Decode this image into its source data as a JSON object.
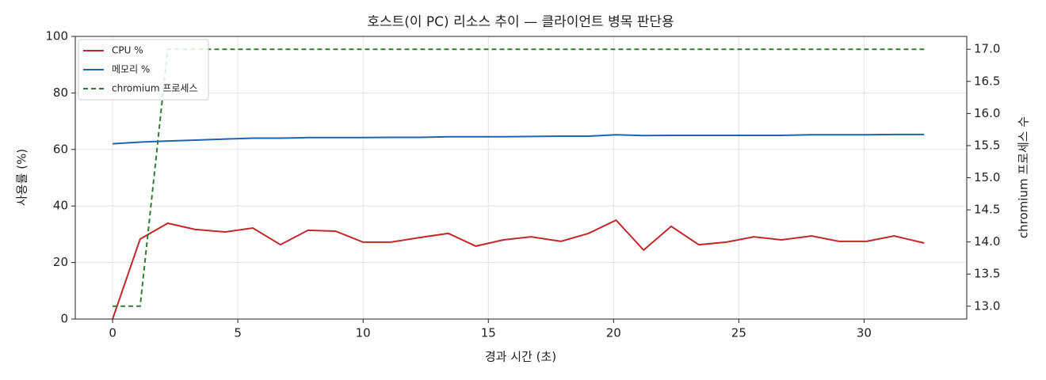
{
  "chart_data": {
    "type": "line",
    "title": "호스트(이 PC) 리소스 추이 — 클라이언트 병목 판단용",
    "x_label": "경과 시간 (초)",
    "y_label": "사용률 (%)",
    "y2_label": "chromium 프로세스 수",
    "x": [
      0,
      1.1,
      2.2,
      3.3,
      4.5,
      5.6,
      6.7,
      7.8,
      8.9,
      10.0,
      11.1,
      12.3,
      13.4,
      14.5,
      15.6,
      16.7,
      17.9,
      19.0,
      20.1,
      21.2,
      22.3,
      23.4,
      24.5,
      25.6,
      26.7,
      27.9,
      29.0,
      30.1,
      31.2,
      32.4
    ],
    "series": [
      {
        "name": "CPU %",
        "color": "#c0282a",
        "dash": false,
        "values": [
          0,
          28.3,
          33.9,
          31.7,
          30.8,
          32.2,
          26.3,
          31.4,
          31.1,
          27.2,
          27.2,
          28.9,
          30.3,
          25.8,
          28.0,
          29.1,
          27.5,
          30.3,
          35.0,
          24.4,
          32.8,
          26.3,
          27.2,
          29.1,
          28.0,
          29.4,
          27.5,
          27.5,
          29.4,
          26.9
        ]
      },
      {
        "name": "메모리 %",
        "color": "#1f63b0",
        "dash": false,
        "values": [
          62.0,
          62.6,
          63.0,
          63.3,
          63.7,
          64.0,
          64.0,
          64.2,
          64.2,
          64.2,
          64.3,
          64.3,
          64.5,
          64.5,
          64.5,
          64.6,
          64.7,
          64.7,
          65.2,
          64.9,
          65.0,
          65.0,
          65.0,
          65.0,
          65.0,
          65.2,
          65.2,
          65.2,
          65.3,
          65.3
        ]
      },
      {
        "name": "chromium 프로세스",
        "color": "#2e7d32",
        "dash": true,
        "axis": "y2",
        "values": [
          13,
          13,
          17,
          17,
          17,
          17,
          17,
          17,
          17,
          17,
          17,
          17,
          17,
          17,
          17,
          17,
          17,
          17,
          17,
          17,
          17,
          17,
          17,
          17,
          17,
          17,
          17,
          17,
          17,
          17
        ]
      }
    ],
    "xlim": [
      -1.49,
      34.1
    ],
    "xticks": [
      0,
      5,
      10,
      15,
      20,
      25,
      30
    ],
    "ylim": [
      0,
      100
    ],
    "yticks": [
      0,
      20,
      40,
      60,
      80,
      100
    ],
    "y2lim": [
      12.8,
      17.2
    ],
    "y2ticks": [
      {
        "value": 13,
        "label": "13.0"
      },
      {
        "value": 13.5,
        "label": "13.5"
      },
      {
        "value": 14,
        "label": "14.0"
      },
      {
        "value": 14.5,
        "label": "14.5"
      },
      {
        "value": 15,
        "label": "15.0"
      },
      {
        "value": 15.5,
        "label": "15.5"
      },
      {
        "value": 16,
        "label": "16.0"
      },
      {
        "value": 16.5,
        "label": "16.5"
      },
      {
        "value": 17,
        "label": "17.0"
      }
    ],
    "grid": true,
    "legend": "upper-left"
  }
}
